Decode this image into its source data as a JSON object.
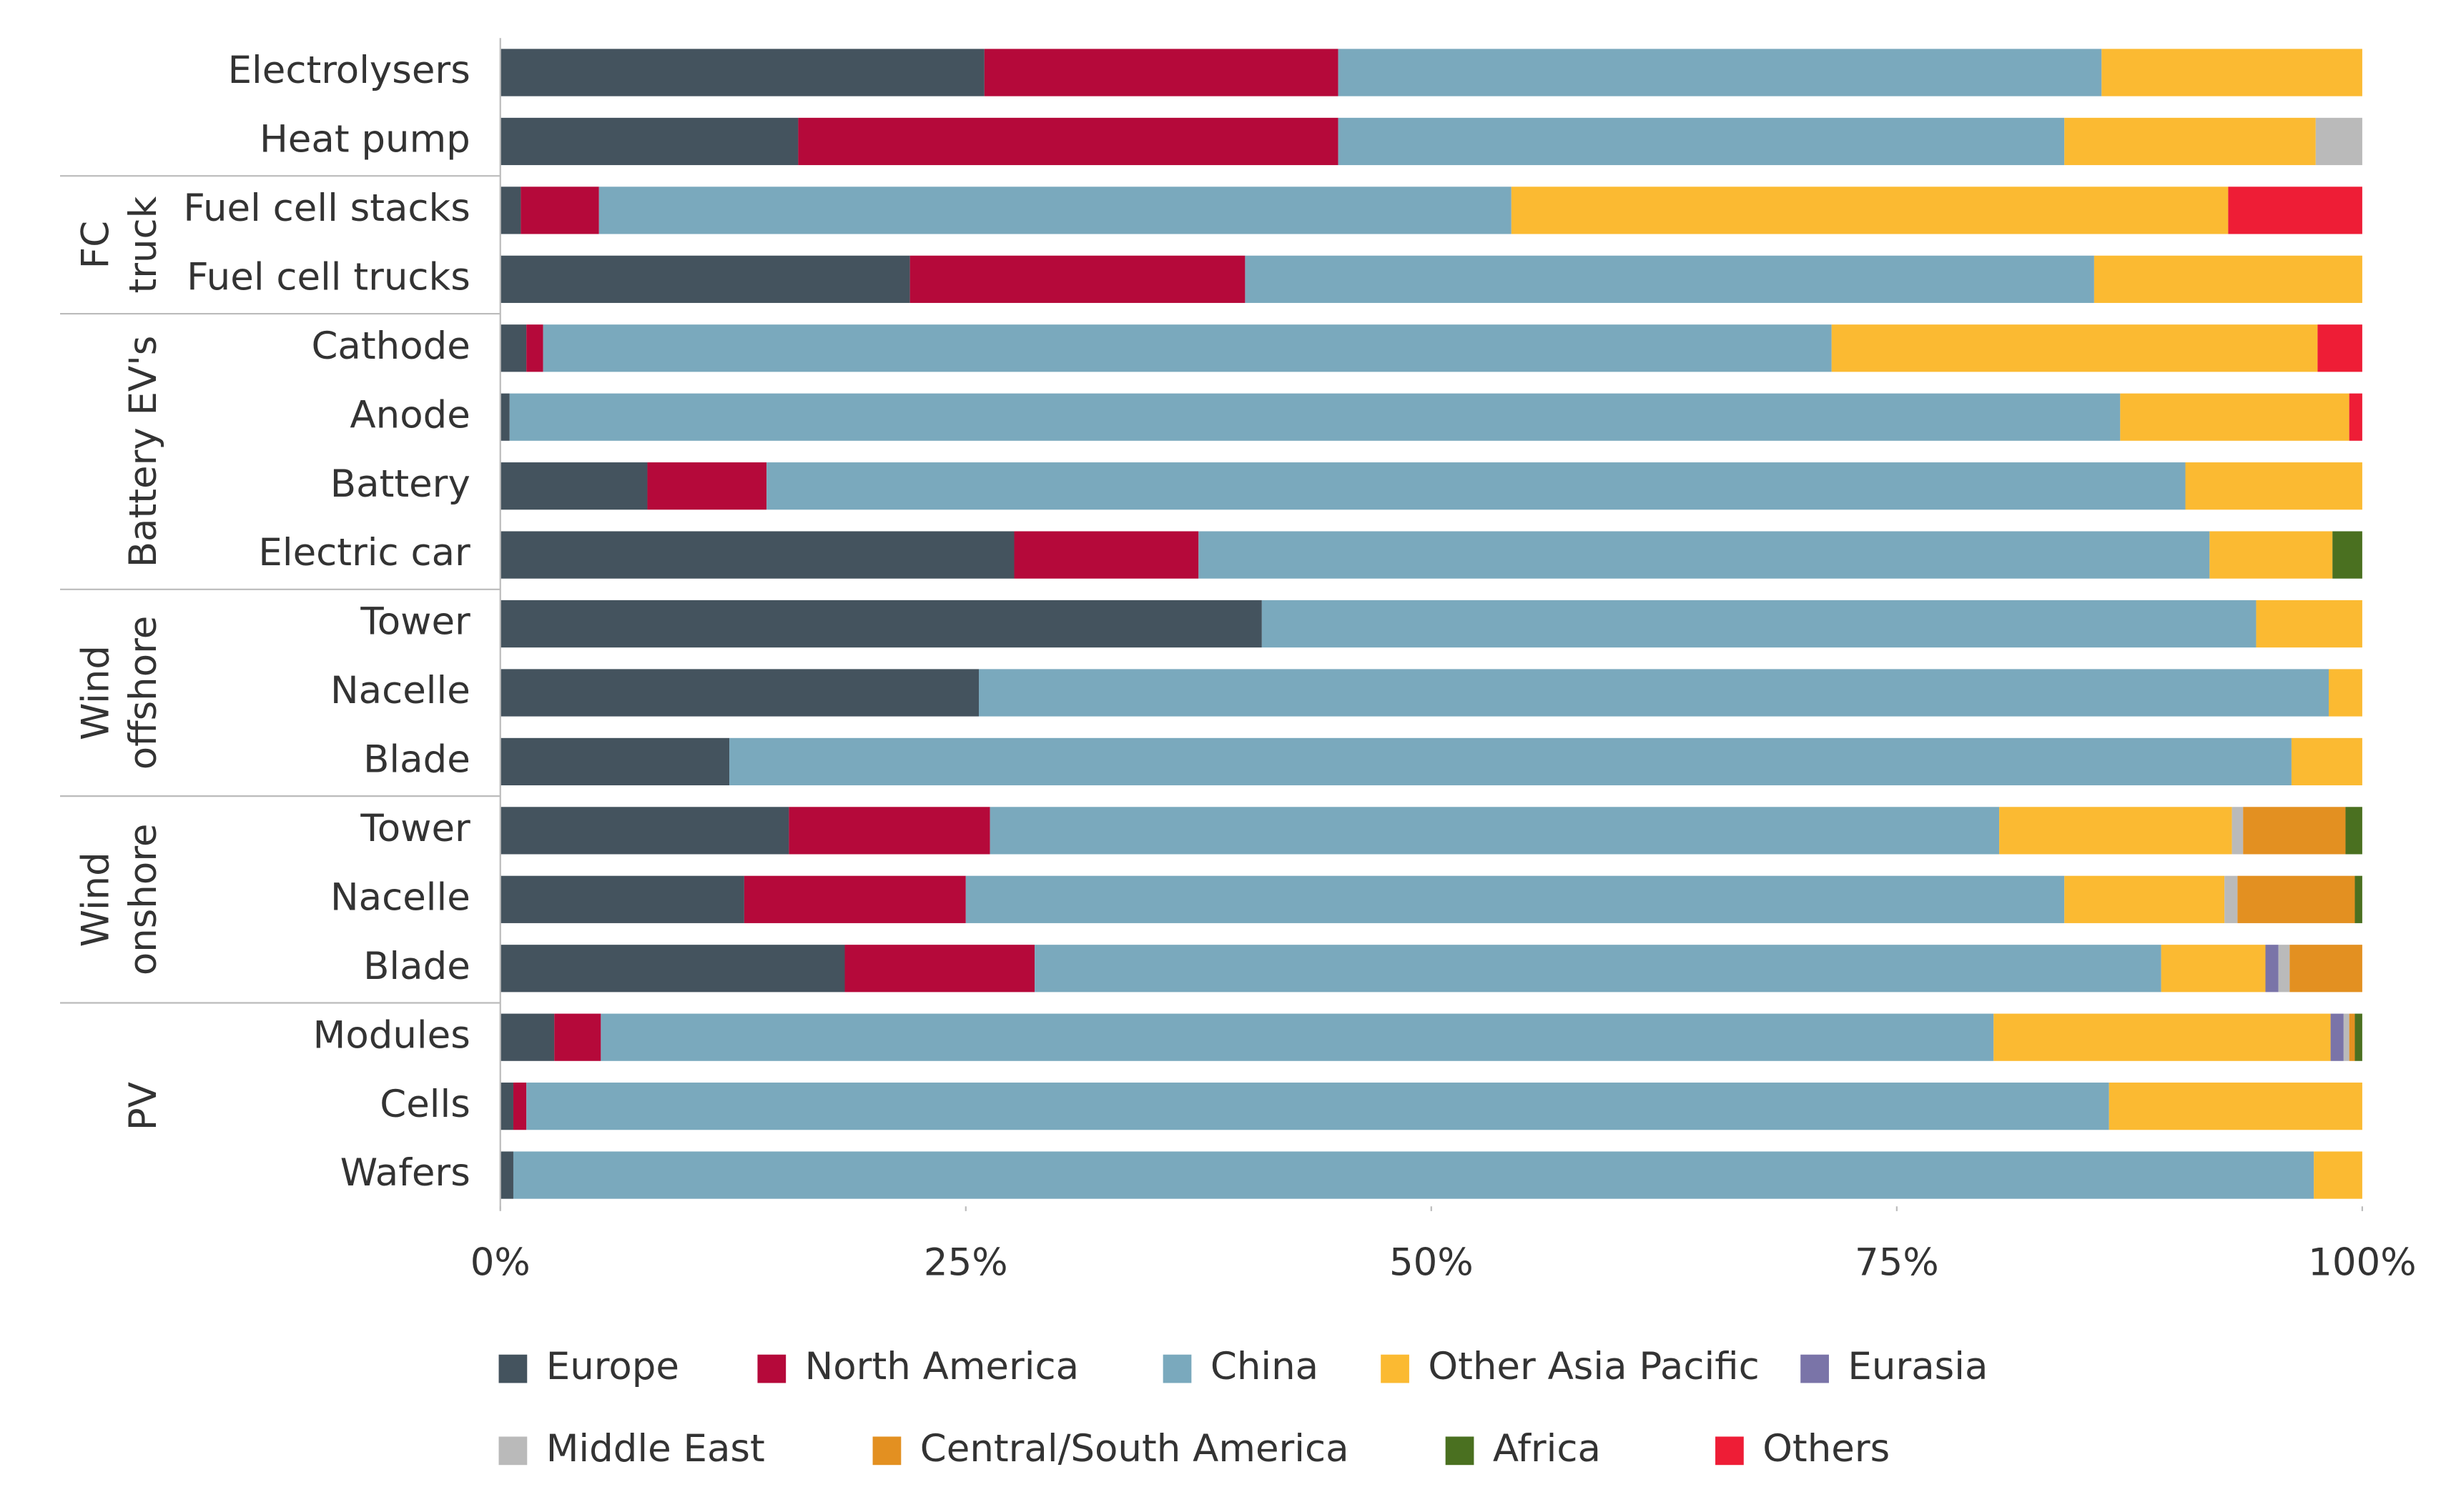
{
  "chart_data": {
    "type": "stacked-barh",
    "categories": [
      "Electrolysers",
      "Heat pump",
      "Fuel cell stacks",
      "Fuel cell trucks",
      "Cathode",
      "Anode",
      "Battery",
      "Electric car",
      "Tower",
      "Nacelle",
      "Blade",
      "Tower",
      "Nacelle",
      "Blade",
      "Modules",
      "Cells",
      "Wafers"
    ],
    "groups": [
      {
        "label": [
          "FC",
          "truck"
        ],
        "first": 2,
        "last": 3
      },
      {
        "label": [
          "Battery EV's"
        ],
        "first": 4,
        "last": 7
      },
      {
        "label": [
          "Wind",
          "offshore"
        ],
        "first": 8,
        "last": 10
      },
      {
        "label": [
          "Wind",
          "onshore"
        ],
        "first": 11,
        "last": 13
      },
      {
        "label": [
          "PV"
        ],
        "first": 14,
        "last": 16
      }
    ],
    "series": [
      {
        "name": "Europe",
        "color": "#44535e",
        "values": [
          26.0,
          16.0,
          1.1,
          22.0,
          1.4,
          0.5,
          7.9,
          27.6,
          40.9,
          25.7,
          12.3,
          15.5,
          13.1,
          18.5,
          2.9,
          0.7,
          0.7
        ]
      },
      {
        "name": "North America",
        "color": "#b5093a",
        "values": [
          19.0,
          29.0,
          4.2,
          18.0,
          0.9,
          null,
          6.4,
          9.9,
          null,
          null,
          null,
          10.8,
          11.9,
          10.2,
          2.5,
          0.7,
          null
        ]
      },
      {
        "name": "China",
        "color": "#7aa9bd",
        "values": [
          41.0,
          39.0,
          49.0,
          45.6,
          69.2,
          86.5,
          76.2,
          54.3,
          53.4,
          72.5,
          83.9,
          54.2,
          59.0,
          60.5,
          74.8,
          85.0,
          96.7
        ]
      },
      {
        "name": "Other Asia Pacific",
        "color": "#fbba32",
        "values": [
          14.0,
          13.5,
          38.5,
          14.4,
          26.1,
          12.3,
          9.5,
          6.6,
          5.7,
          1.8,
          3.8,
          12.5,
          8.6,
          5.6,
          18.1,
          13.6,
          2.6
        ]
      },
      {
        "name": "Eurasia",
        "color": "#7a74a8",
        "values": [
          null,
          null,
          null,
          null,
          null,
          null,
          null,
          null,
          null,
          null,
          null,
          null,
          null,
          0.7,
          0.7,
          null,
          null
        ]
      },
      {
        "name": "Middle East",
        "color": "#bababa",
        "values": [
          null,
          2.5,
          null,
          null,
          null,
          null,
          null,
          null,
          null,
          null,
          null,
          0.6,
          0.7,
          0.6,
          0.3,
          null,
          null
        ]
      },
      {
        "name": "Central/South America",
        "color": "#e39021",
        "values": [
          null,
          null,
          null,
          null,
          null,
          null,
          null,
          null,
          null,
          null,
          null,
          5.5,
          6.3,
          3.9,
          0.3,
          null,
          null
        ]
      },
      {
        "name": "Africa",
        "color": "#4a7020",
        "values": [
          null,
          null,
          null,
          null,
          null,
          null,
          null,
          1.6,
          null,
          null,
          null,
          0.9,
          0.4,
          null,
          0.4,
          null,
          null
        ]
      },
      {
        "name": "Others",
        "color": "#ee1d36",
        "values": [
          null,
          null,
          7.2,
          null,
          2.4,
          0.7,
          null,
          null,
          null,
          null,
          null,
          null,
          null,
          null,
          null,
          null,
          null
        ]
      }
    ],
    "xlim": [
      0,
      100
    ],
    "xticks": [
      {
        "value": 0,
        "label": "0%"
      },
      {
        "value": 25,
        "label": "25%"
      },
      {
        "value": 50,
        "label": "50%"
      },
      {
        "value": 75,
        "label": "75%"
      },
      {
        "value": 100,
        "label": "100%"
      }
    ],
    "grid": false
  }
}
